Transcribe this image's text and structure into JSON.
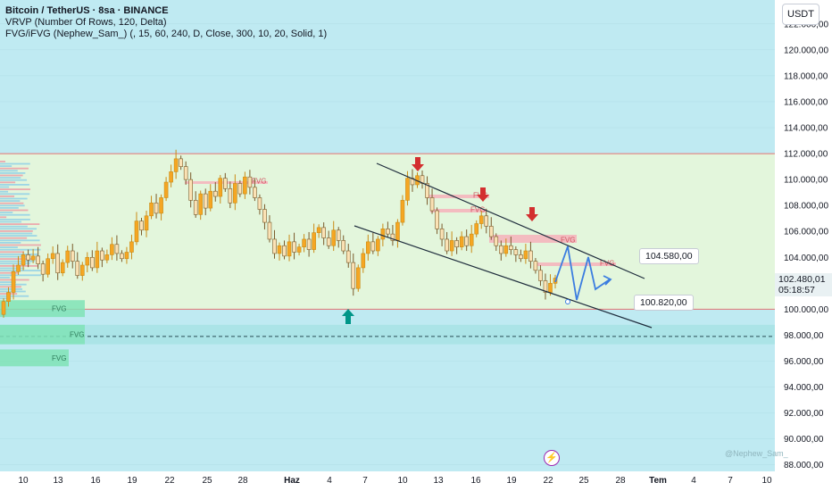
{
  "legend": {
    "symbol": "Bitcoin / TetherUS · 8sa · BINANCE",
    "vrvp": "VRVP (Number Of Rows, 120, Delta)",
    "fvg": "FVG/iFVG (Nephew_Sam_) (, 15, 60, 240, D, Close, 300, 10, 20, Solid, 1)"
  },
  "currency": "USDT",
  "current_price": "102.480,01",
  "countdown": "05:18:57",
  "price_labels": {
    "upper": "104.580,00",
    "lower": "100.820,00"
  },
  "watermark": "@Nephew_Sam_",
  "colors": {
    "bull": "#f5a623",
    "bear": "#7a5a2a",
    "range_fill": "#e3f6dc",
    "range_line": "#e57373",
    "fvg_red": "#f4b6bd",
    "fvg_green": "#7fe3b6",
    "arrow_red": "#d32f2f",
    "arrow_green": "#009688",
    "path_blue": "#3b7de0"
  },
  "chart_data": {
    "type": "candlestick",
    "title": "Bitcoin / TetherUS · 8sa · BINANCE",
    "ylim": [
      87500,
      123500
    ],
    "y_ticks": [
      88000,
      90000,
      92000,
      94000,
      96000,
      98000,
      100000,
      102000,
      104000,
      106000,
      108000,
      110000,
      112000,
      114000,
      116000,
      118000,
      120000,
      122000
    ],
    "y_tick_labels": [
      "88.000,00",
      "90.000,00",
      "92.000,00",
      "94.000,00",
      "96.000,00",
      "98.000,00",
      "100.000,00",
      "102.000,00",
      "104.000,00",
      "106.000,00",
      "108.000,00",
      "110.000,00",
      "112.000,00",
      "114.000,00",
      "116.000,00",
      "118.000,00",
      "120.000,00",
      "122.000,00"
    ],
    "x_tick_labels": [
      "10",
      "13",
      "16",
      "19",
      "22",
      "25",
      "28",
      "Haz",
      "4",
      "7",
      "10",
      "13",
      "16",
      "19",
      "22",
      "25",
      "28",
      "Tem",
      "4",
      "7",
      "10"
    ],
    "range_high": 112000,
    "range_low": 100000,
    "dashed_level": 97900,
    "fvg_label": "FVG",
    "fvg_zones_green": [
      [
        99400,
        100700
      ],
      [
        97300,
        98800
      ],
      [
        95600,
        96900
      ]
    ],
    "closes": [
      100600,
      101300,
      102900,
      103400,
      104200,
      103800,
      104100,
      103500,
      102700,
      103900,
      104300,
      102800,
      103600,
      104500,
      103700,
      102600,
      103400,
      104000,
      103200,
      104500,
      103800,
      104200,
      105000,
      104300,
      103900,
      104400,
      105200,
      106800,
      106100,
      107200,
      108200,
      107400,
      108600,
      109800,
      110600,
      111600,
      111000,
      110000,
      108400,
      107300,
      108900,
      107800,
      109100,
      108700,
      110100,
      109300,
      108200,
      109700,
      108900,
      110200,
      109400,
      108600,
      107700,
      106700,
      105400,
      104300,
      104900,
      104100,
      105200,
      104400,
      104800,
      105400,
      104600,
      105900,
      106300,
      105500,
      104900,
      106100,
      105300,
      104500,
      103600,
      101600,
      103200,
      104300,
      105200,
      104500,
      105400,
      106200,
      105800,
      105300,
      106700,
      108400,
      110100,
      109600,
      110300,
      109700,
      108600,
      107600,
      106200,
      105400,
      104500,
      105300,
      104800,
      105600,
      104900,
      105800,
      106600,
      107200,
      106400,
      105600,
      104900,
      104300,
      104900,
      104600,
      104200,
      103900,
      104500,
      103700,
      103000,
      102200,
      101300,
      102000,
      102400
    ],
    "annotations": [
      {
        "type": "price_label",
        "value": 104580,
        "text": "104.580,00"
      },
      {
        "type": "price_label",
        "value": 100820,
        "text": "100.820,00"
      }
    ]
  }
}
